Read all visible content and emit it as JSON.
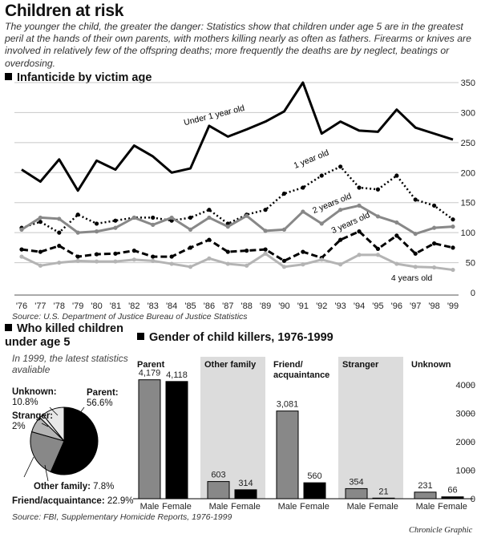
{
  "title": "Children at risk",
  "intro": "The younger the child, the greater the danger: Statistics show that children under age 5 are in the greatest peril at the hands of their own parents, with mothers killing nearly as often as fathers. Firearms or knives are involved in relatively few of the offspring deaths; more frequently the deaths are by neglect, beatings or overdosing.",
  "line_section_title": "Infanticide by victim age",
  "line_source": "Source: U.S. Department of Justice Bureau of Justice Statistics",
  "pie_section_title": "Who killed children under age 5",
  "pie_subtitle": "In 1999, the latest statistics avaliable",
  "bar_section_title": "Gender of child killers, 1976-1999",
  "bottom_source": "Source: FBI, Supplementary Homicide Reports, 1976-1999",
  "credit": "Chronicle Graphic",
  "colors": {
    "dark": "#000000",
    "mid_gray": "#888888",
    "light_gray": "#b4b4b4",
    "shade": "#dcdcdc"
  },
  "chart_data": [
    {
      "type": "line",
      "title": "Infanticide by victim age",
      "x": [
        "'76",
        "'77",
        "'78",
        "'79",
        "'80",
        "'81",
        "'82",
        "'83",
        "'84",
        "'85",
        "'86",
        "'87",
        "'88",
        "'89",
        "'90",
        "'91",
        "'92",
        "'93",
        "'94",
        "'95",
        "'96",
        "'97",
        "'98",
        "'99"
      ],
      "ylim": [
        0,
        350
      ],
      "yticks": [
        0,
        50,
        100,
        150,
        200,
        250,
        300,
        350
      ],
      "series": [
        {
          "name": "Under 1 year old",
          "style": "solid-black",
          "values": [
            205,
            185,
            222,
            170,
            220,
            205,
            245,
            227,
            200,
            207,
            278,
            260,
            272,
            285,
            302,
            350,
            265,
            285,
            270,
            268,
            305,
            275,
            265,
            255
          ]
        },
        {
          "name": "1 year old",
          "style": "dotted-black",
          "values": [
            108,
            118,
            100,
            130,
            115,
            120,
            125,
            125,
            120,
            125,
            138,
            115,
            130,
            138,
            165,
            175,
            195,
            210,
            175,
            172,
            195,
            155,
            145,
            122
          ]
        },
        {
          "name": "2 years old",
          "style": "solid-gray",
          "values": [
            105,
            125,
            123,
            100,
            102,
            108,
            125,
            113,
            125,
            105,
            125,
            110,
            128,
            103,
            105,
            135,
            115,
            138,
            145,
            127,
            117,
            98,
            108,
            110
          ]
        },
        {
          "name": "3 years old",
          "style": "dashed-black",
          "values": [
            72,
            68,
            78,
            60,
            64,
            65,
            70,
            60,
            60,
            75,
            88,
            68,
            70,
            72,
            53,
            68,
            58,
            88,
            102,
            73,
            95,
            65,
            82,
            75
          ]
        },
        {
          "name": "4 years old",
          "style": "solid-lightgray",
          "values": [
            60,
            45,
            50,
            53,
            52,
            52,
            55,
            53,
            48,
            43,
            57,
            48,
            45,
            65,
            43,
            47,
            55,
            47,
            63,
            63,
            48,
            43,
            42,
            38
          ]
        }
      ]
    },
    {
      "type": "pie",
      "title": "Who killed children under age 5",
      "slices": [
        {
          "label": "Parent:",
          "value": 56.6,
          "display": "56.6%"
        },
        {
          "label": "Friend/acquaintance:",
          "value": 22.9,
          "display": "22.9%"
        },
        {
          "label": "Other family:",
          "value": 7.8,
          "display": "7.8%"
        },
        {
          "label": "Stranger:",
          "value": 2,
          "display": "2%"
        },
        {
          "label": "Unknown:",
          "value": 10.8,
          "display": "10.8%"
        }
      ]
    },
    {
      "type": "bar",
      "title": "Gender of child killers, 1976-1999",
      "ylim": [
        0,
        4000
      ],
      "yticks": [
        0,
        1000,
        2000,
        3000,
        4000
      ],
      "categories": [
        {
          "name": "Parent",
          "shaded": false,
          "male": 4179,
          "female": 4118,
          "male_label": "4,179",
          "female_label": "4,118"
        },
        {
          "name": "Other family",
          "shaded": true,
          "male": 603,
          "female": 314,
          "male_label": "603",
          "female_label": "314"
        },
        {
          "name": "Friend/ acquaintance",
          "shaded": false,
          "male": 3081,
          "female": 560,
          "male_label": "3,081",
          "female_label": "560"
        },
        {
          "name": "Stranger",
          "shaded": true,
          "male": 354,
          "female": 21,
          "male_label": "354",
          "female_label": "21"
        },
        {
          "name": "Unknown",
          "shaded": false,
          "male": 231,
          "female": 66,
          "male_label": "231",
          "female_label": "66"
        }
      ],
      "series_labels": {
        "male": "Male",
        "female": "Female"
      }
    }
  ]
}
